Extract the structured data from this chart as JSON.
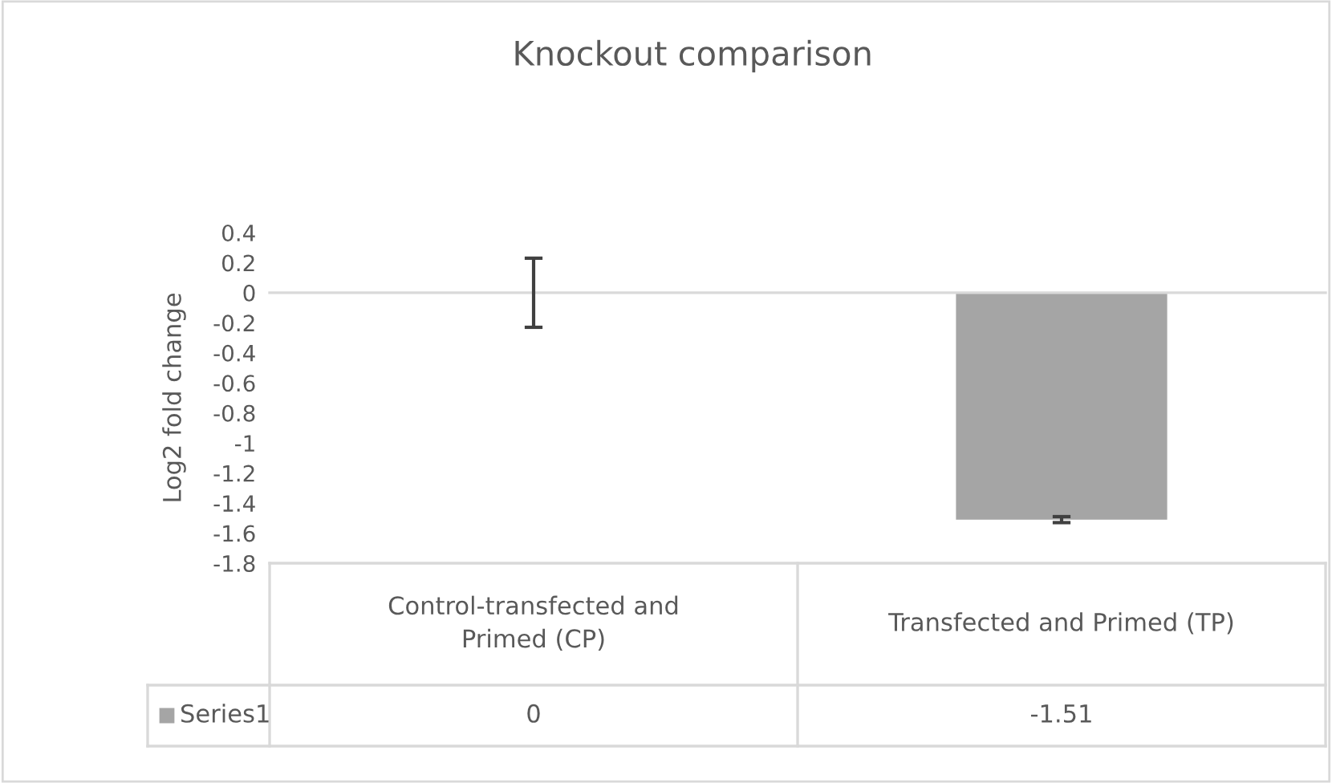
{
  "chart_data": {
    "type": "bar",
    "title": "Knockout comparison",
    "ylabel": "Log2 fold change",
    "categories": [
      "Control-transfected and Primed (CP)",
      "Transfected and Primed (TP)"
    ],
    "series": [
      {
        "name": "Series1",
        "color": "#a5a5a5",
        "values": [
          0,
          -1.51
        ],
        "errors": [
          0.23,
          0.02
        ]
      }
    ],
    "ylim": [
      -1.8,
      0.4
    ],
    "yticks": [
      0.4,
      0.2,
      0,
      -0.2,
      -0.4,
      -0.6,
      -0.8,
      -1,
      -1.2,
      -1.4,
      -1.6,
      -1.8
    ],
    "data_labels": true
  }
}
